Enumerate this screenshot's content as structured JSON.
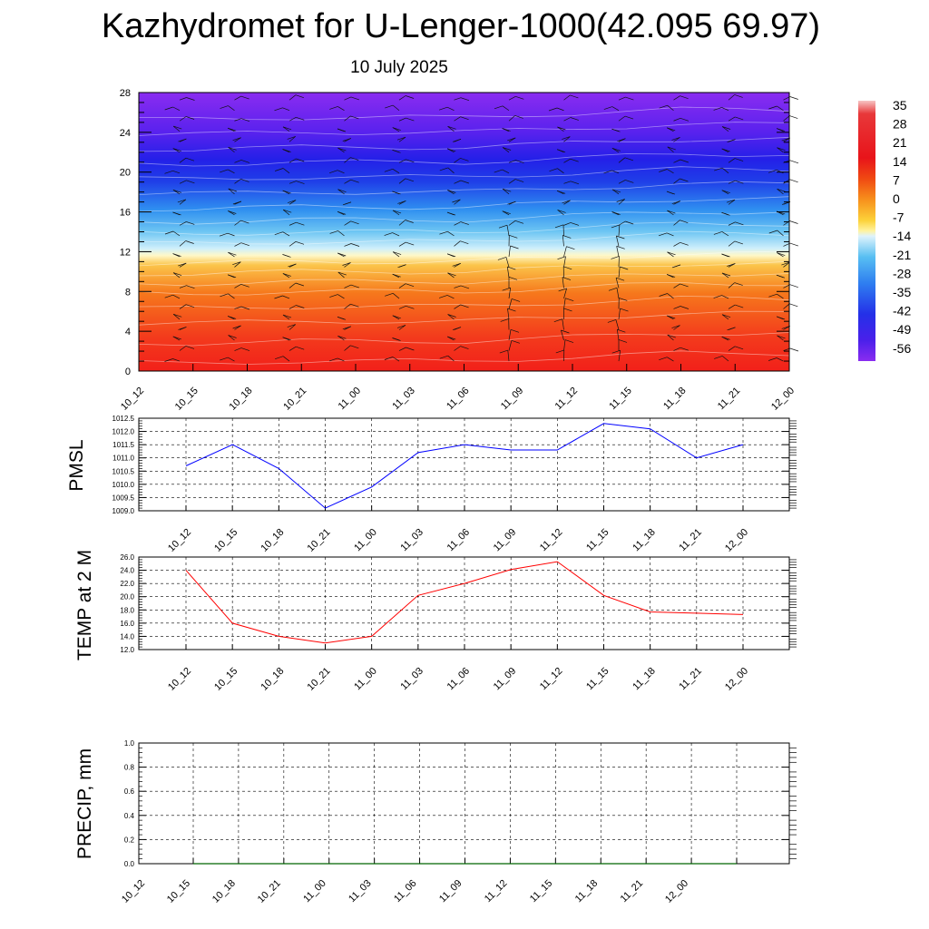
{
  "title": "Kazhydromet for U-Lenger-1000(42.095 69.97)",
  "subtitle": "10 July 2025",
  "chart_data": [
    {
      "type": "heatmap",
      "x_ticks": [
        "10_12",
        "10_15",
        "10_18",
        "10_21",
        "11_00",
        "11_03",
        "11_06",
        "11_09",
        "11_12",
        "11_15",
        "11_18",
        "11_21",
        "12_00"
      ],
      "y_ticks": [
        "0",
        "4",
        "8",
        "12",
        "16",
        "20",
        "24",
        "28"
      ],
      "ylim": [
        0,
        28
      ],
      "colorbar_labels": [
        "35",
        "28",
        "21",
        "14",
        "7",
        "0",
        "-7",
        "-14",
        "-21",
        "-28",
        "-35",
        "-42",
        "-49",
        "-56"
      ],
      "freezing_level": [
        11.8,
        11.8,
        11.9,
        12.0,
        12.0,
        12.0,
        12.0,
        12.2,
        12.4,
        12.6,
        12.8,
        12.8,
        12.8
      ],
      "overlay": "wind barbs"
    },
    {
      "type": "line",
      "ylabel": "PMSL",
      "x": [
        "10_12",
        "10_15",
        "10_18",
        "10_21",
        "11_00",
        "11_03",
        "11_06",
        "11_09",
        "11_12",
        "11_15",
        "11_18",
        "11_21",
        "12_00"
      ],
      "values": [
        1010.7,
        1011.5,
        1010.6,
        1009.1,
        1009.9,
        1011.2,
        1011.5,
        1011.3,
        1011.3,
        1012.3,
        1012.1,
        1011.0,
        1011.5
      ],
      "y_ticks": [
        "1009.0",
        "1009.5",
        "1010.0",
        "1010.5",
        "1011.0",
        "1011.5",
        "1012.0",
        "1012.5"
      ],
      "ylim": [
        1009.0,
        1012.5
      ],
      "color": "#0000ff",
      "grid": true
    },
    {
      "type": "line",
      "ylabel": "TEMP at 2 M",
      "x": [
        "10_12",
        "10_15",
        "10_18",
        "10_21",
        "11_00",
        "11_03",
        "11_06",
        "11_09",
        "11_12",
        "11_15",
        "11_18",
        "11_21",
        "12_00"
      ],
      "values": [
        24.0,
        16.0,
        14.0,
        13.0,
        14.0,
        20.2,
        22.0,
        24.1,
        25.3,
        20.2,
        17.7,
        17.5,
        17.3
      ],
      "y_ticks": [
        "12.0",
        "14.0",
        "16.0",
        "18.0",
        "20.0",
        "22.0",
        "24.0",
        "26.0"
      ],
      "ylim": [
        12.0,
        26.0
      ],
      "color": "#ff0000",
      "grid": true
    },
    {
      "type": "line",
      "ylabel": "PRECIP, mm",
      "x": [
        "10_12",
        "10_15",
        "10_18",
        "10_21",
        "11_00",
        "11_03",
        "11_06",
        "11_09",
        "11_12",
        "11_15",
        "11_18",
        "11_21",
        "12_00"
      ],
      "values": [
        0,
        0,
        0,
        0,
        0,
        0,
        0,
        0,
        0,
        0,
        0,
        0,
        0
      ],
      "y_ticks": [
        "0.0",
        "0.2",
        "0.4",
        "0.6",
        "0.8",
        "1.0"
      ],
      "ylim": [
        0.0,
        1.0
      ],
      "color": "#006400",
      "grid": true
    }
  ]
}
